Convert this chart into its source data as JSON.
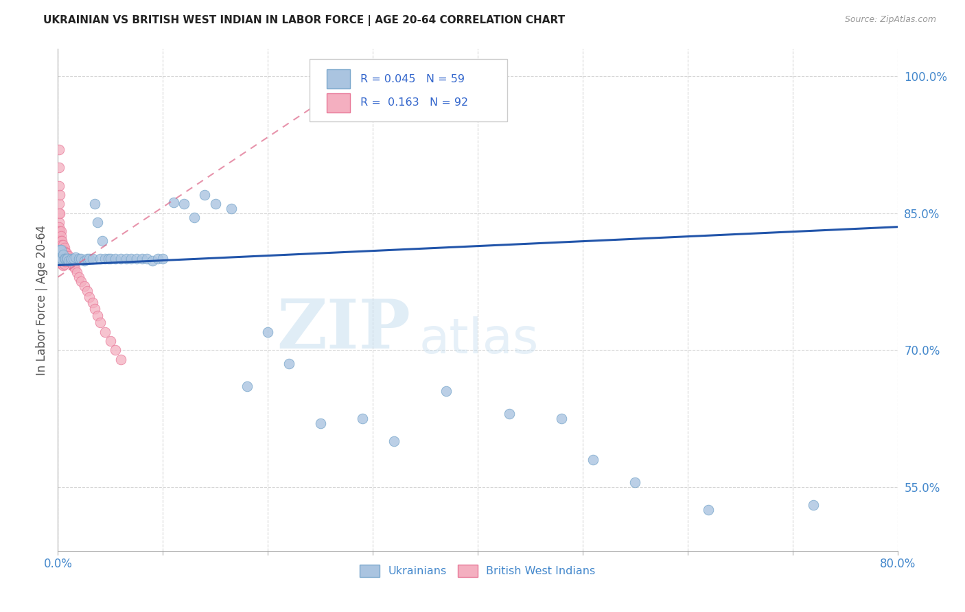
{
  "title": "UKRAINIAN VS BRITISH WEST INDIAN IN LABOR FORCE | AGE 20-64 CORRELATION CHART",
  "source": "Source: ZipAtlas.com",
  "ylabel": "In Labor Force | Age 20-64",
  "xlim": [
    0.0,
    0.8
  ],
  "ylim": [
    0.48,
    1.03
  ],
  "xticks": [
    0.0,
    0.1,
    0.2,
    0.3,
    0.4,
    0.5,
    0.6,
    0.7,
    0.8
  ],
  "xticklabels": [
    "0.0%",
    "",
    "",
    "",
    "",
    "",
    "",
    "",
    "80.0%"
  ],
  "ytick_positions": [
    0.55,
    0.7,
    0.85,
    1.0
  ],
  "ytick_labels": [
    "55.0%",
    "70.0%",
    "85.0%",
    "100.0%"
  ],
  "ukrainian_color": "#aac4e0",
  "british_color": "#f4afc0",
  "ukrainian_edge": "#7ba8cc",
  "british_edge": "#e87898",
  "trend_ukrainian_color": "#2255aa",
  "trend_british_color": "#dd6688",
  "legend_R_ukrainian": "0.045",
  "legend_N_ukrainian": "59",
  "legend_R_british": "0.163",
  "legend_N_british": "92",
  "watermark_zip": "ZIP",
  "watermark_atlas": "atlas",
  "background_color": "#ffffff",
  "grid_color": "#cccccc",
  "ukrainian_x": [
    0.001,
    0.001,
    0.002,
    0.002,
    0.003,
    0.003,
    0.004,
    0.005,
    0.006,
    0.007,
    0.008,
    0.009,
    0.01,
    0.012,
    0.013,
    0.015,
    0.017,
    0.02,
    0.022,
    0.025,
    0.028,
    0.03,
    0.033,
    0.035,
    0.038,
    0.04,
    0.042,
    0.045,
    0.048,
    0.05,
    0.055,
    0.06,
    0.065,
    0.07,
    0.075,
    0.08,
    0.085,
    0.09,
    0.095,
    0.1,
    0.11,
    0.12,
    0.13,
    0.14,
    0.15,
    0.165,
    0.18,
    0.2,
    0.22,
    0.25,
    0.29,
    0.32,
    0.37,
    0.43,
    0.48,
    0.51,
    0.55,
    0.62,
    0.72
  ],
  "ukrainian_y": [
    0.807,
    0.8,
    0.8,
    0.81,
    0.8,
    0.81,
    0.8,
    0.805,
    0.8,
    0.8,
    0.8,
    0.8,
    0.798,
    0.798,
    0.8,
    0.8,
    0.802,
    0.8,
    0.8,
    0.798,
    0.8,
    0.8,
    0.8,
    0.86,
    0.84,
    0.8,
    0.82,
    0.8,
    0.8,
    0.8,
    0.8,
    0.8,
    0.8,
    0.8,
    0.8,
    0.8,
    0.8,
    0.798,
    0.8,
    0.8,
    0.862,
    0.86,
    0.845,
    0.87,
    0.86,
    0.855,
    0.66,
    0.72,
    0.685,
    0.62,
    0.625,
    0.6,
    0.655,
    0.63,
    0.625,
    0.58,
    0.555,
    0.525,
    0.53
  ],
  "british_x": [
    0.001,
    0.001,
    0.001,
    0.001,
    0.001,
    0.001,
    0.001,
    0.001,
    0.001,
    0.001,
    0.001,
    0.001,
    0.001,
    0.002,
    0.002,
    0.002,
    0.002,
    0.002,
    0.002,
    0.002,
    0.002,
    0.002,
    0.002,
    0.002,
    0.003,
    0.003,
    0.003,
    0.003,
    0.003,
    0.003,
    0.003,
    0.003,
    0.003,
    0.003,
    0.004,
    0.004,
    0.004,
    0.004,
    0.004,
    0.004,
    0.004,
    0.004,
    0.004,
    0.004,
    0.005,
    0.005,
    0.005,
    0.005,
    0.005,
    0.005,
    0.005,
    0.005,
    0.005,
    0.006,
    0.006,
    0.006,
    0.006,
    0.006,
    0.006,
    0.006,
    0.007,
    0.007,
    0.007,
    0.007,
    0.007,
    0.008,
    0.008,
    0.008,
    0.009,
    0.009,
    0.01,
    0.01,
    0.011,
    0.012,
    0.013,
    0.014,
    0.015,
    0.016,
    0.018,
    0.02,
    0.022,
    0.025,
    0.028,
    0.03,
    0.033,
    0.035,
    0.038,
    0.04,
    0.045,
    0.05,
    0.055,
    0.06
  ],
  "british_y": [
    0.92,
    0.9,
    0.88,
    0.86,
    0.85,
    0.84,
    0.835,
    0.83,
    0.825,
    0.82,
    0.815,
    0.81,
    0.805,
    0.87,
    0.85,
    0.83,
    0.82,
    0.815,
    0.81,
    0.808,
    0.805,
    0.803,
    0.8,
    0.798,
    0.83,
    0.825,
    0.82,
    0.815,
    0.81,
    0.808,
    0.805,
    0.803,
    0.8,
    0.798,
    0.82,
    0.815,
    0.81,
    0.808,
    0.805,
    0.803,
    0.8,
    0.798,
    0.796,
    0.794,
    0.815,
    0.81,
    0.808,
    0.806,
    0.803,
    0.8,
    0.798,
    0.796,
    0.793,
    0.812,
    0.808,
    0.806,
    0.803,
    0.8,
    0.797,
    0.794,
    0.808,
    0.806,
    0.803,
    0.8,
    0.797,
    0.806,
    0.803,
    0.8,
    0.803,
    0.8,
    0.803,
    0.8,
    0.8,
    0.798,
    0.796,
    0.794,
    0.792,
    0.79,
    0.785,
    0.78,
    0.775,
    0.77,
    0.765,
    0.758,
    0.752,
    0.745,
    0.738,
    0.73,
    0.72,
    0.71,
    0.7,
    0.69
  ],
  "trend_uk_x0": 0.0,
  "trend_uk_x1": 0.8,
  "trend_uk_y0": 0.793,
  "trend_uk_y1": 0.835,
  "trend_bw_x0": 0.0,
  "trend_bw_x1": 0.3,
  "trend_bw_y0": 0.78,
  "trend_bw_y1": 1.01
}
